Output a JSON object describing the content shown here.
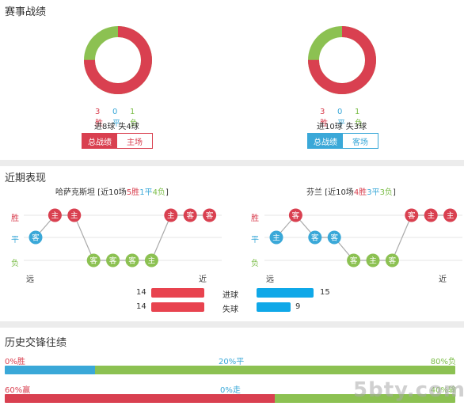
{
  "record": {
    "title": "赛事战绩",
    "left": {
      "win": "3胜",
      "draw": "0平",
      "loss": "1负",
      "goals": "进8球",
      "conceded": "失4球",
      "win_frac": 0.75,
      "draw_frac": 0,
      "loss_frac": 0.25,
      "tab_total": "总战绩",
      "tab_venue": "主场",
      "accent": "#d94050"
    },
    "right": {
      "win": "3胜",
      "draw": "0平",
      "loss": "1负",
      "goals": "进10球",
      "conceded": "失3球",
      "win_frac": 0.75,
      "draw_frac": 0,
      "loss_frac": 0.25,
      "tab_total": "总战绩",
      "tab_venue": "客场",
      "accent": "#3aa8d8"
    }
  },
  "recent": {
    "title": "近期表现",
    "y_labels": {
      "win": "胜",
      "draw": "平",
      "loss": "负"
    },
    "far": "远",
    "near": "近",
    "left": {
      "team": "哈萨克斯坦",
      "summary_pre": " [近10场",
      "wins": "5胜",
      "draws": "1平",
      "losses": "4负",
      "summary_post": "]",
      "matches": [
        {
          "r": "D",
          "v": "客"
        },
        {
          "r": "W",
          "v": "主"
        },
        {
          "r": "W",
          "v": "主"
        },
        {
          "r": "L",
          "v": "客"
        },
        {
          "r": "L",
          "v": "客"
        },
        {
          "r": "L",
          "v": "客"
        },
        {
          "r": "L",
          "v": "主"
        },
        {
          "r": "W",
          "v": "主"
        },
        {
          "r": "W",
          "v": "客"
        },
        {
          "r": "W",
          "v": "客"
        }
      ]
    },
    "right": {
      "team": "芬兰",
      "summary_pre": " [近10场",
      "wins": "4胜",
      "draws": "3平",
      "losses": "3负",
      "summary_post": "]",
      "matches": [
        {
          "r": "D",
          "v": "主"
        },
        {
          "r": "W",
          "v": "客"
        },
        {
          "r": "D",
          "v": "客"
        },
        {
          "r": "D",
          "v": "客"
        },
        {
          "r": "L",
          "v": "客"
        },
        {
          "r": "L",
          "v": "主"
        },
        {
          "r": "L",
          "v": "客"
        },
        {
          "r": "W",
          "v": "客"
        },
        {
          "r": "W",
          "v": "主"
        },
        {
          "r": "W",
          "v": "主"
        }
      ]
    },
    "goals_label": "进球",
    "conceded_label": "失球",
    "left_goals": "14",
    "left_conceded": "14",
    "right_goals": "15",
    "right_conceded": "9",
    "goals_max": 15
  },
  "h2h": {
    "title": "历史交锋往绩",
    "row1": {
      "left": "0%胜",
      "mid": "20%平",
      "right": "80%负",
      "win_frac": 0,
      "draw_frac": 0.2,
      "loss_frac": 0.8
    },
    "row2": {
      "left": "60%赢",
      "mid": "0%走",
      "right": "40%输",
      "win_frac": 0.6,
      "draw_frac": 0,
      "loss_frac": 0.4
    }
  },
  "watermark": "5bty.com",
  "colors": {
    "win": "#d94050",
    "draw": "#3aa8d8",
    "loss": "#8cc152",
    "bar_red": "#e8434f",
    "bar_blue": "#0fa8e8"
  }
}
